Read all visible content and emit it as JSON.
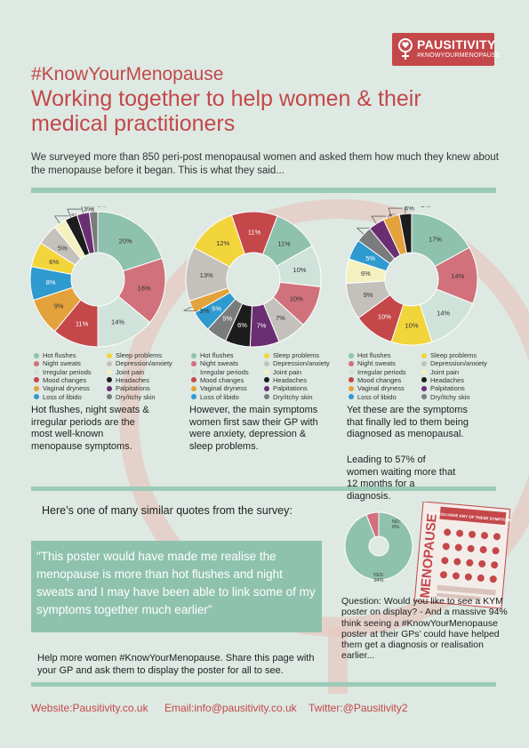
{
  "brand": {
    "name": "PAUSITIVITY",
    "tagline": "#KNOWYOURMENOPAUSE"
  },
  "header": {
    "hashtag": "#KnowYourMenopause",
    "title": "Working together to help women & their medical practitioners",
    "intro": "We surveyed more than 850 peri-post menopausal women and asked them how much they knew about the menopause before it began. This is what they said..."
  },
  "legend": [
    {
      "label": "Hot flushes",
      "color": "#8fc2ae"
    },
    {
      "label": "Sleep problems",
      "color": "#f2d43b"
    },
    {
      "label": "Night sweats",
      "color": "#d0717b"
    },
    {
      "label": "Depression/anxiety",
      "color": "#c4c1bc"
    },
    {
      "label": "Irregular periods",
      "color": "#cfe3da"
    },
    {
      "label": "Joint pain",
      "color": "#f4f0c0"
    },
    {
      "label": "Mood changes",
      "color": "#c4474a"
    },
    {
      "label": "Headaches",
      "color": "#1c1c1c"
    },
    {
      "label": "Vaginal dryness",
      "color": "#e3a23c"
    },
    {
      "label": "Palpitations",
      "color": "#6b2e72"
    },
    {
      "label": "Loss of libido",
      "color": "#2f9ad0"
    },
    {
      "label": "Dry/itchy skin",
      "color": "#797b7c"
    }
  ],
  "chart_data": [
    {
      "type": "pie",
      "series": [
        {
          "label": "Hot flushes",
          "value": 20,
          "display": "20%"
        },
        {
          "label": "Night sweats",
          "value": 16,
          "display": "16%"
        },
        {
          "label": "Irregular periods",
          "value": 14,
          "display": "14%"
        },
        {
          "label": "Mood changes",
          "value": 11,
          "display": "11%"
        },
        {
          "label": "Vaginal dryness",
          "value": 9,
          "display": "9%"
        },
        {
          "label": "Loss of libido",
          "value": 8,
          "display": "8%"
        },
        {
          "label": "Sleep problems",
          "value": 6,
          "display": "6%"
        },
        {
          "label": "Depression/anxiety",
          "value": 5,
          "display": "5%"
        },
        {
          "label": "Joint pain",
          "value": 3,
          "display": "3%"
        },
        {
          "label": "Headaches",
          "value": 3,
          "display": "3%"
        },
        {
          "label": "Palpitations",
          "value": 3,
          "display": "3%"
        },
        {
          "label": "Dry/itchy skin",
          "value": 2,
          "display": "2%"
        }
      ]
    },
    {
      "type": "pie",
      "series": [
        {
          "label": "Sleep problems",
          "value": 12,
          "display": "12%"
        },
        {
          "label": "Mood changes",
          "value": 11,
          "display": "11%"
        },
        {
          "label": "Hot flushes",
          "value": 11,
          "display": "11%"
        },
        {
          "label": "Irregular periods",
          "value": 10,
          "display": "10%"
        },
        {
          "label": "Night sweats",
          "value": 10,
          "display": "10%"
        },
        {
          "label": "Depression/anxiety",
          "value": 7,
          "display": "7%"
        },
        {
          "label": "Palpitations",
          "value": 7,
          "display": "7%"
        },
        {
          "label": "Headaches",
          "value": 6,
          "display": "6%"
        },
        {
          "label": "Dry/itchy skin",
          "value": 5,
          "display": "5%"
        },
        {
          "label": "Loss of libido",
          "value": 5,
          "display": "5%"
        },
        {
          "label": "Vaginal dryness",
          "value": 3,
          "display": "3%"
        },
        {
          "label": "Depression/anxiety",
          "value": 13,
          "display": "13%"
        }
      ]
    },
    {
      "type": "pie",
      "series": [
        {
          "label": "Hot flushes",
          "value": 17,
          "display": "17%"
        },
        {
          "label": "Night sweats",
          "value": 14,
          "display": "14%"
        },
        {
          "label": "Irregular periods",
          "value": 14,
          "display": "14%"
        },
        {
          "label": "Sleep problems",
          "value": 10,
          "display": "10%"
        },
        {
          "label": "Mood changes",
          "value": 10,
          "display": "10%"
        },
        {
          "label": "Depression/anxiety",
          "value": 9,
          "display": "9%"
        },
        {
          "label": "Joint pain",
          "value": 6,
          "display": "6%"
        },
        {
          "label": "Loss of libido",
          "value": 5,
          "display": "5%"
        },
        {
          "label": "Dry/itchy skin",
          "value": 4,
          "display": "4%"
        },
        {
          "label": "Palpitations",
          "value": 4,
          "display": "4%"
        },
        {
          "label": "Vaginal dryness",
          "value": 4,
          "display": "4%"
        },
        {
          "label": "Headaches",
          "value": 3,
          "display": "3%"
        }
      ]
    },
    {
      "type": "pie",
      "series": [
        {
          "label": "YES",
          "value": 94,
          "display": "YES: 94%",
          "color": "#8fc2ae"
        },
        {
          "label": "NO",
          "value": 6,
          "display": "NO: 6%",
          "color": "#d0717b"
        }
      ]
    }
  ],
  "captions": {
    "c1": "Hot flushes, night sweats & irregular periods are the most well-known menopause symptoms.",
    "c2": "However, the main symptoms women first saw their GP with were anxiety, depression & sleep problems.",
    "c3a": "Yet these are the symptoms that finally led to them being diagnosed as menopausal.",
    "c3b": "Leading to 57% of women waiting more that 12 months for a diagnosis."
  },
  "quote": {
    "intro": "Here’s one of many similar quotes from the survey:",
    "text": "\"This poster would have made me realise the menopause is more than hot flushes and night sweats and I may have been able to link some of my symptoms together much earlier\""
  },
  "help_text": "Help more women #KnowYourMenopause. Share this page with your GP and ask them to display the poster for all to see.",
  "question_text": "Question: Would you like to see a KYM poster on display? - And a massive 94% think seeing a #KnowYourMenopause poster at their GPs’ could have helped them get a diagnosis or realisation earlier...",
  "poster": {
    "title": "MENOPAUSE",
    "heading": "DO YOU HAVE ANY OF THESE SYMPTOMS?"
  },
  "footer": {
    "website": "Website:Pausitivity.co.uk",
    "email": "Email:info@pausitivity.co.uk",
    "twitter": "Twitter:@Pausitivity2"
  }
}
